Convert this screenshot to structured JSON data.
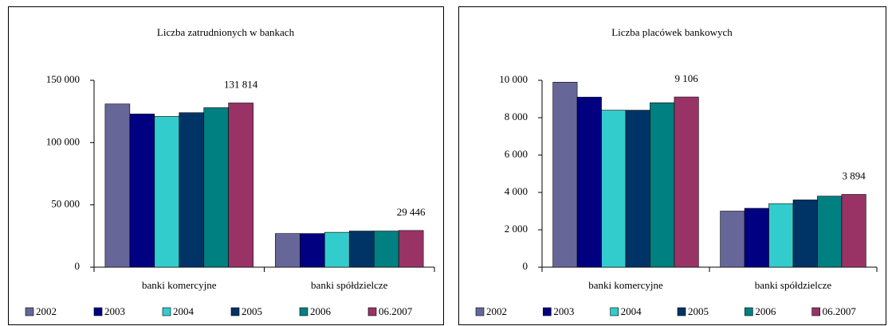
{
  "chart_data": [
    {
      "type": "bar",
      "title": "Liczba zatrudnionych w bankach",
      "categories": [
        "banki komercyjne",
        "banki spółdzielcze"
      ],
      "series": [
        {
          "name": "2002",
          "color": "#666699",
          "values": [
            131000,
            27000
          ]
        },
        {
          "name": "2003",
          "color": "#000080",
          "values": [
            123000,
            27000
          ]
        },
        {
          "name": "2004",
          "color": "#33cccc",
          "values": [
            121000,
            28000
          ]
        },
        {
          "name": "2005",
          "color": "#003366",
          "values": [
            124000,
            29000
          ]
        },
        {
          "name": "2006",
          "color": "#008080",
          "values": [
            128000,
            29000
          ]
        },
        {
          "name": "06.2007",
          "color": "#993366",
          "values": [
            131814,
            29446
          ],
          "value_labels": [
            "131 814",
            "29 446"
          ]
        }
      ],
      "ylim": [
        0,
        150000
      ],
      "yticks": [
        0,
        {
          "value": 50000,
          "label": "50 000"
        },
        {
          "value": 100000,
          "label": "100 000"
        },
        {
          "value": 150000,
          "label": "150 000"
        }
      ],
      "grid": false,
      "legend": "bottom"
    },
    {
      "type": "bar",
      "title": "Liczba placówek bankowych",
      "categories": [
        "banki komercyjne",
        "banki spółdzielcze"
      ],
      "series": [
        {
          "name": "2002",
          "color": "#666699",
          "values": [
            9900,
            3000
          ]
        },
        {
          "name": "2003",
          "color": "#000080",
          "values": [
            9100,
            3150
          ]
        },
        {
          "name": "2004",
          "color": "#33cccc",
          "values": [
            8400,
            3400
          ]
        },
        {
          "name": "2005",
          "color": "#003366",
          "values": [
            8400,
            3600
          ]
        },
        {
          "name": "2006",
          "color": "#008080",
          "values": [
            8800,
            3800
          ]
        },
        {
          "name": "06.2007",
          "color": "#993366",
          "values": [
            9106,
            3894
          ],
          "value_labels": [
            "9 106",
            "3 894"
          ]
        }
      ],
      "ylim": [
        0,
        10000
      ],
      "yticks": [
        0,
        {
          "value": 2000,
          "label": "2 000"
        },
        {
          "value": 4000,
          "label": "4 000"
        },
        {
          "value": 6000,
          "label": "6 000"
        },
        {
          "value": 8000,
          "label": "8 000"
        },
        {
          "value": 10000,
          "label": "10 000"
        }
      ],
      "grid": false,
      "legend": "bottom"
    }
  ]
}
